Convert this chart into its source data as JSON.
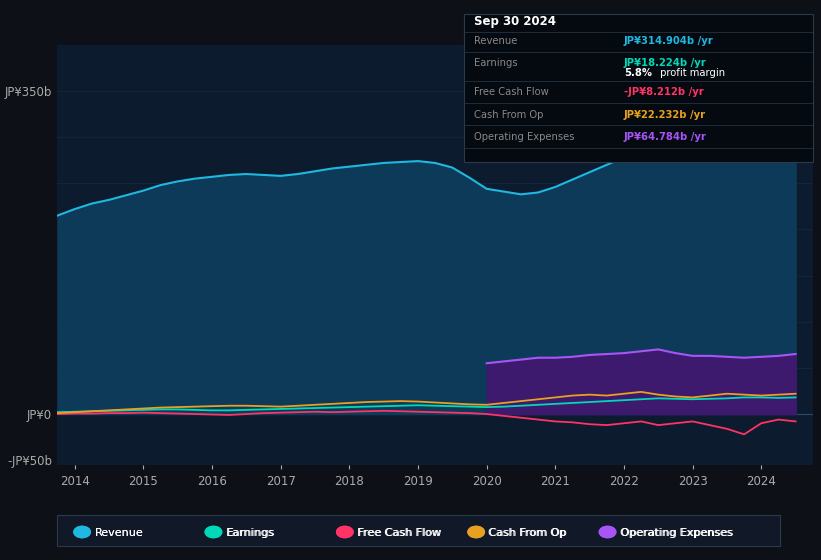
{
  "background_color": "#0d1117",
  "plot_bg_color": "#0d1b2e",
  "grid_color": "#1a2f4a",
  "title_box": {
    "date": "Sep 30 2024",
    "revenue_label": "Revenue",
    "revenue_value": "JP¥314.904b /yr",
    "earnings_label": "Earnings",
    "earnings_value": "JP¥18.224b /yr",
    "margin_text": "5.8% profit margin",
    "fcf_label": "Free Cash Flow",
    "fcf_value": "-JP¥8.212b /yr",
    "cashop_label": "Cash From Op",
    "cashop_value": "JP¥22.232b /yr",
    "opex_label": "Operating Expenses",
    "opex_value": "JP¥64.784b /yr"
  },
  "years": [
    2013.75,
    2014.0,
    2014.25,
    2014.5,
    2014.75,
    2015.0,
    2015.25,
    2015.5,
    2015.75,
    2016.0,
    2016.25,
    2016.5,
    2016.75,
    2017.0,
    2017.25,
    2017.5,
    2017.75,
    2018.0,
    2018.25,
    2018.5,
    2018.75,
    2019.0,
    2019.25,
    2019.5,
    2019.75,
    2020.0,
    2020.25,
    2020.5,
    2020.75,
    2021.0,
    2021.25,
    2021.5,
    2021.75,
    2022.0,
    2022.25,
    2022.5,
    2022.75,
    2023.0,
    2023.25,
    2023.5,
    2023.75,
    2024.0,
    2024.25,
    2024.5
  ],
  "revenue": [
    215,
    222,
    228,
    232,
    237,
    242,
    248,
    252,
    255,
    257,
    259,
    260,
    259,
    258,
    260,
    263,
    266,
    268,
    270,
    272,
    273,
    274,
    272,
    267,
    256,
    244,
    241,
    238,
    240,
    246,
    254,
    262,
    270,
    278,
    284,
    290,
    293,
    290,
    294,
    300,
    306,
    311,
    315,
    316
  ],
  "earnings": [
    2,
    2.5,
    3,
    3.5,
    4,
    4.5,
    5,
    5,
    4.5,
    4,
    4,
    4.5,
    5,
    5.5,
    6,
    6.5,
    7,
    7.5,
    8,
    8.5,
    9,
    9.5,
    9,
    8.5,
    8,
    7.5,
    8,
    9,
    10,
    11,
    12,
    13,
    14,
    15,
    16,
    17,
    16.5,
    16,
    16.5,
    17,
    18,
    18,
    17.5,
    18
  ],
  "free_cash_flow": [
    0,
    0.5,
    0.5,
    1,
    1,
    1.5,
    1,
    0.5,
    0,
    -0.5,
    -1,
    0,
    1,
    1.5,
    2,
    2.5,
    2,
    2.5,
    3,
    3.5,
    3,
    2.5,
    2,
    1.5,
    1,
    0,
    -2,
    -4,
    -6,
    -8,
    -9,
    -11,
    -12,
    -10,
    -8,
    -12,
    -10,
    -8,
    -12,
    -16,
    -22,
    -10,
    -6,
    -8
  ],
  "cash_from_op": [
    1,
    2,
    3,
    4,
    5,
    6,
    7,
    7.5,
    8,
    8.5,
    9,
    9,
    8.5,
    8,
    9,
    10,
    11,
    12,
    13,
    13.5,
    14,
    13.5,
    12.5,
    11.5,
    10.5,
    10,
    12,
    14,
    16,
    18,
    20,
    21,
    20,
    22,
    24,
    21,
    19,
    18,
    20,
    22,
    21,
    20,
    21,
    22
  ],
  "operating_expenses": [
    0,
    0,
    0,
    0,
    0,
    0,
    0,
    0,
    0,
    0,
    0,
    0,
    0,
    0,
    0,
    0,
    0,
    0,
    0,
    0,
    0,
    0,
    0,
    0,
    0,
    55,
    57,
    59,
    61,
    61,
    62,
    64,
    65,
    66,
    68,
    70,
    66,
    63,
    63,
    62,
    61,
    62,
    63,
    65
  ],
  "ylim": [
    -55,
    400
  ],
  "ytick_positions": [
    -50,
    0,
    350
  ],
  "ytick_labels": [
    "-JP¥50b",
    "JP¥0",
    "JP¥350b"
  ],
  "grid_lines": [
    0,
    50,
    100,
    150,
    200,
    250,
    300,
    350
  ],
  "xlim": [
    2013.75,
    2024.75
  ],
  "xticks": [
    2014,
    2015,
    2016,
    2017,
    2018,
    2019,
    2020,
    2021,
    2022,
    2023,
    2024
  ],
  "revenue_color": "#1eb8e0",
  "revenue_fill": "#0d3a58",
  "earnings_color": "#00d9b8",
  "fcf_color": "#ff3366",
  "cashop_color": "#e8a020",
  "opex_color": "#a855f7",
  "opex_fill": "#3d1a6e",
  "legend_items": [
    {
      "label": "Revenue",
      "color": "#1eb8e0",
      "marker": "o"
    },
    {
      "label": "Earnings",
      "color": "#00d9b8",
      "marker": "o"
    },
    {
      "label": "Free Cash Flow",
      "color": "#ff3366",
      "marker": "o"
    },
    {
      "label": "Cash From Op",
      "color": "#e8a020",
      "marker": "o"
    },
    {
      "label": "Operating Expenses",
      "color": "#a855f7",
      "marker": "o"
    }
  ]
}
